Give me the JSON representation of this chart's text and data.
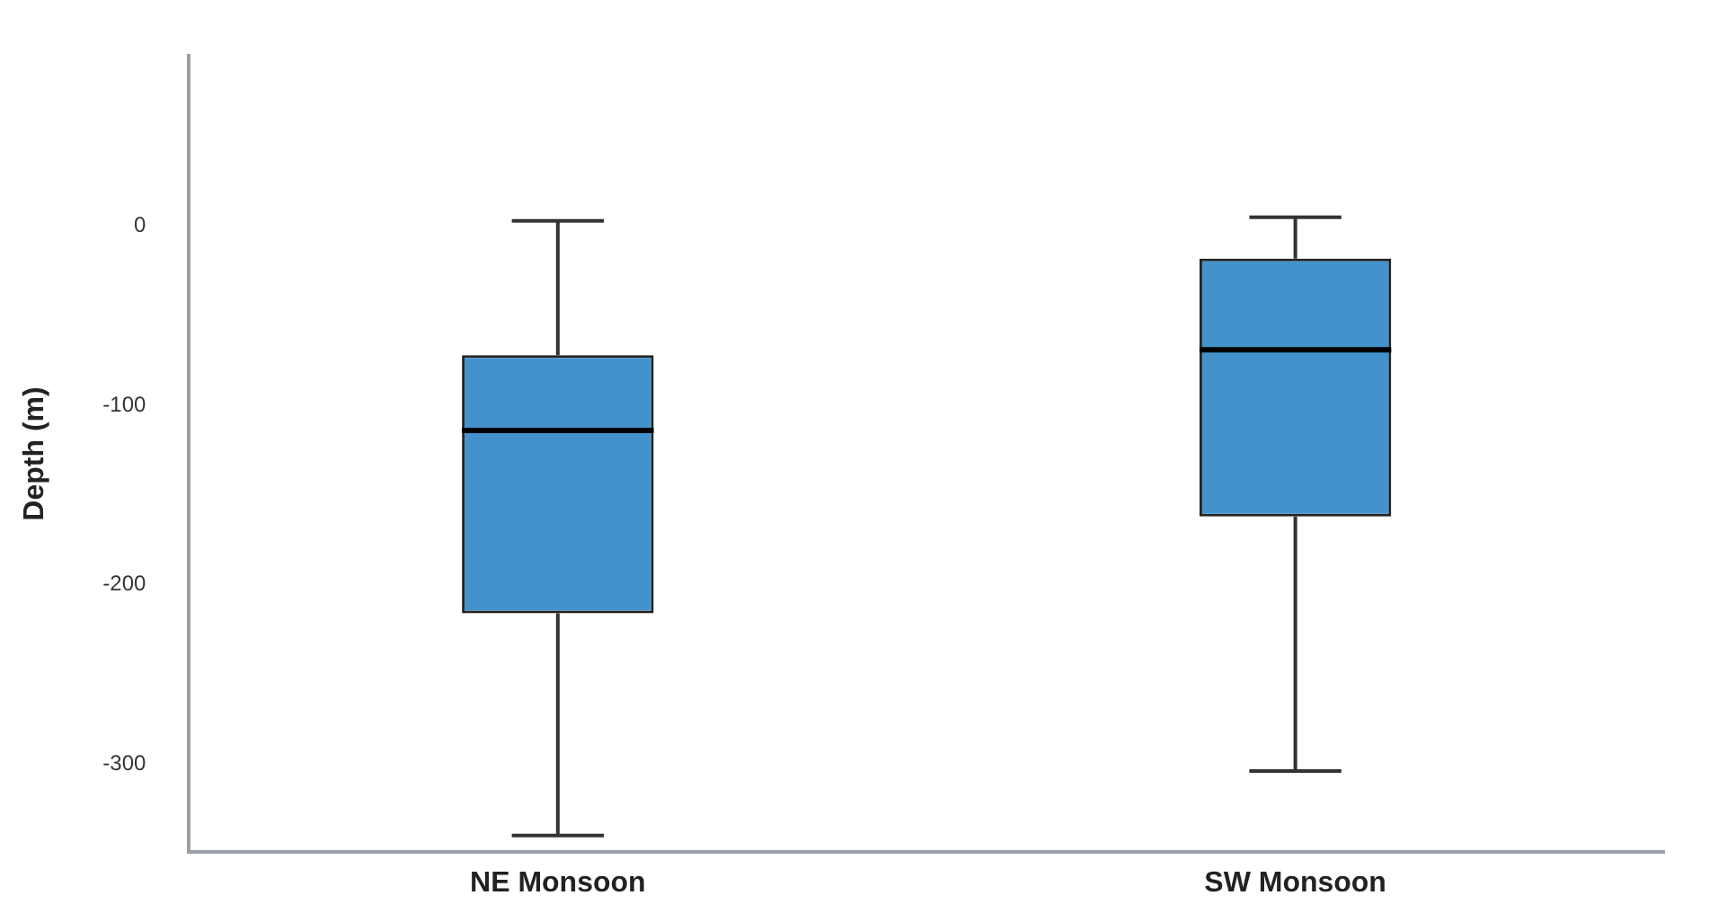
{
  "chart_data": {
    "type": "box",
    "ylabel": "Depth (m)",
    "categories": [
      "NE Monsoon",
      "SW Monsoon"
    ],
    "color": "#4392cb",
    "boxes": [
      {
        "low": -340,
        "q1": -216,
        "median": -114,
        "q3": -72,
        "high": 3
      },
      {
        "low": -304,
        "q1": -162,
        "median": -69,
        "q3": -18,
        "high": 5
      }
    ],
    "ylim": [
      -349,
      95
    ],
    "yticks": [
      -300,
      -200,
      -100,
      0
    ],
    "grid": false,
    "legend": false
  }
}
